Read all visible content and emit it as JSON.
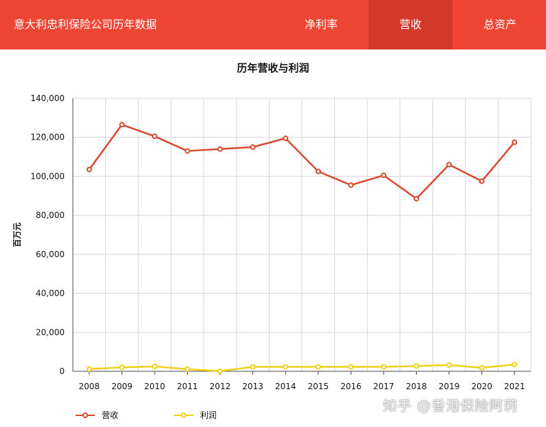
{
  "header": {
    "title": "意大利忠利保险公司历年数据",
    "tabs": [
      {
        "label": "净利率",
        "active": false
      },
      {
        "label": "营收",
        "active": true
      },
      {
        "label": "总资产",
        "active": false
      }
    ]
  },
  "colors": {
    "header_bg": "#ef4535",
    "active_tab_bg": "#d3392b",
    "revenue": "#d9472f",
    "profit": "#f0d018"
  },
  "watermark": "知乎 @香港保险阿莉",
  "chart_data": {
    "type": "line",
    "title": "历年营收与利润",
    "xlabel": "",
    "ylabel": "百万元",
    "categories": [
      "2008",
      "2009",
      "2010",
      "2011",
      "2012",
      "2013",
      "2014",
      "2015",
      "2016",
      "2017",
      "2018",
      "2019",
      "2020",
      "2021"
    ],
    "ylim": [
      0,
      140000
    ],
    "yticks": [
      "0",
      "20,000",
      "40,000",
      "60,000",
      "80,000",
      "100,000",
      "120,000",
      "140,000"
    ],
    "grid": true,
    "legend_position": "bottom-left",
    "series": [
      {
        "name": "营收",
        "color": "#d9472f",
        "values": [
          103500,
          126500,
          120500,
          113000,
          114000,
          115000,
          119500,
          102500,
          95500,
          100500,
          88500,
          106000,
          97500,
          117500
        ]
      },
      {
        "name": "利润",
        "color": "#f0d018",
        "values": [
          1200,
          2000,
          2500,
          1100,
          100,
          2300,
          2300,
          2300,
          2300,
          2300,
          2700,
          3200,
          1800,
          3500
        ]
      }
    ]
  }
}
